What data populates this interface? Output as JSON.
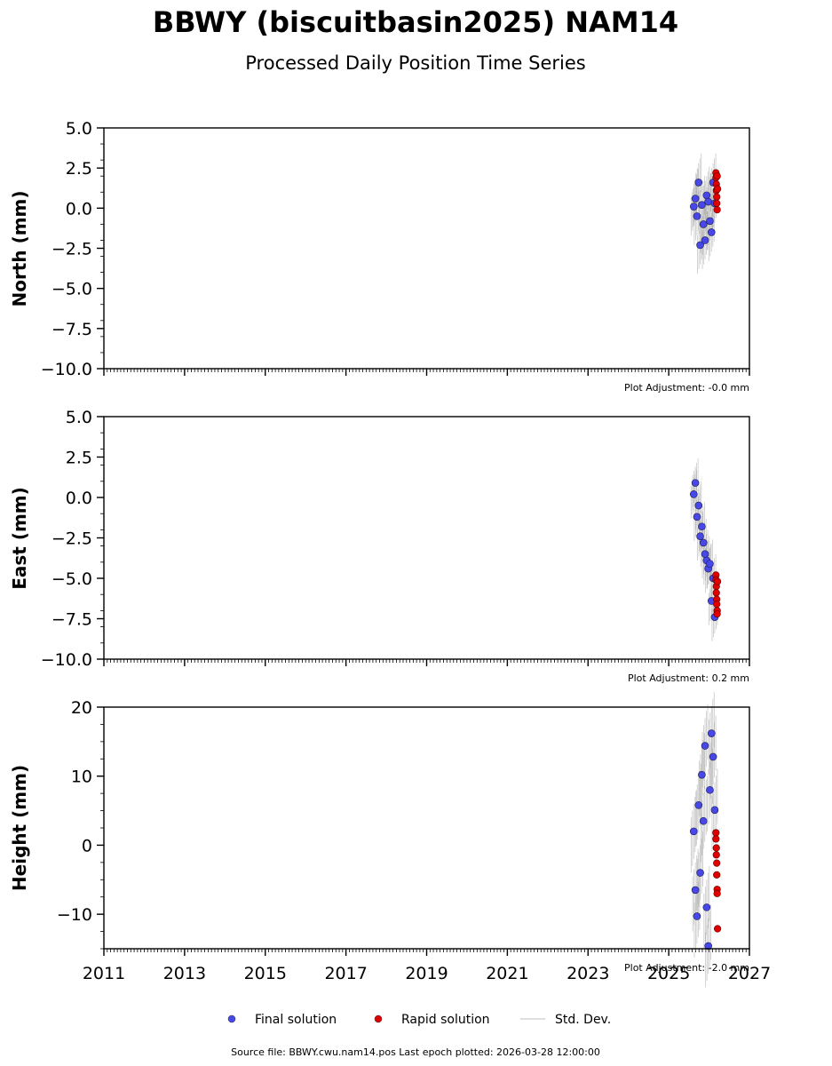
{
  "chart_data": {
    "type": "scatter",
    "title": "BBWY (biscuitbasin2025) NAM14",
    "subtitle": "Processed Daily Position Time Series",
    "footer": "Source file: BBWY.cwu.nam14.pos  Last epoch plotted: 2026-03-28 12:00:00",
    "x_ticks": [
      "2011",
      "2013",
      "2015",
      "2017",
      "2019",
      "2021",
      "2023",
      "2025",
      "2027"
    ],
    "xlim": [
      2011,
      2027
    ],
    "legend_position": "bottom-center",
    "legend": [
      {
        "label": "Final solution",
        "color": "#4848e8"
      },
      {
        "label": "Rapid solution",
        "color": "#e00000"
      },
      {
        "label": "Std. Dev.",
        "color": "#d4d4d4"
      }
    ],
    "panels": [
      {
        "ylabel": "North (mm)",
        "ylim": [
          -10,
          5
        ],
        "y_ticks": [
          "5.0",
          "2.5",
          "0.0",
          "−2.5",
          "−5.0",
          "−7.5",
          "−10.0"
        ],
        "adjustment": "Plot Adjustment: -0.0 mm",
        "final": {
          "x": [
            2025.62,
            2025.66,
            2025.7,
            2025.74,
            2025.78,
            2025.82,
            2025.86,
            2025.9,
            2025.94,
            2025.98,
            2026.02,
            2026.06,
            2026.1,
            2026.14
          ],
          "y": [
            0.1,
            0.6,
            -0.5,
            1.6,
            -2.3,
            0.2,
            -1.0,
            -2.0,
            0.8,
            0.4,
            -0.8,
            -1.5,
            1.6,
            0.3
          ],
          "sd": [
            1.2,
            1.2,
            1.2,
            1.2,
            1.2,
            1.2,
            1.2,
            1.2,
            1.2,
            1.2,
            1.2,
            1.2,
            1.2,
            1.2
          ]
        },
        "rapid": {
          "x": [
            2026.17,
            2026.17,
            2026.18,
            2026.18,
            2026.19,
            2026.19,
            2026.2,
            2026.2,
            2026.21
          ],
          "y": [
            2.2,
            1.9,
            1.5,
            1.1,
            0.7,
            0.3,
            -0.1,
            2.0,
            1.2
          ]
        }
      },
      {
        "ylabel": "East (mm)",
        "ylim": [
          -10,
          5
        ],
        "y_ticks": [
          "5.0",
          "2.5",
          "0.0",
          "−2.5",
          "−5.0",
          "−7.5",
          "−10.0"
        ],
        "adjustment": "Plot Adjustment: 0.2 mm",
        "final": {
          "x": [
            2025.62,
            2025.66,
            2025.7,
            2025.74,
            2025.78,
            2025.82,
            2025.86,
            2025.9,
            2025.94,
            2025.98,
            2026.02,
            2026.06,
            2026.1,
            2026.14
          ],
          "y": [
            0.2,
            0.9,
            -1.2,
            -0.5,
            -2.4,
            -1.8,
            -2.8,
            -3.5,
            -3.9,
            -4.4,
            -4.1,
            -6.4,
            -5.0,
            -7.4
          ],
          "sd": [
            1.0,
            1.0,
            1.0,
            1.0,
            1.0,
            1.0,
            1.0,
            1.0,
            1.0,
            1.0,
            1.0,
            1.0,
            1.0,
            1.0
          ]
        },
        "rapid": {
          "x": [
            2026.17,
            2026.17,
            2026.18,
            2026.18,
            2026.19,
            2026.19,
            2026.2,
            2026.2,
            2026.21
          ],
          "y": [
            -4.8,
            -5.1,
            -5.5,
            -5.9,
            -6.3,
            -6.6,
            -7.0,
            -7.2,
            -5.2
          ]
        }
      },
      {
        "ylabel": "Height (mm)",
        "ylim": [
          -15,
          20
        ],
        "y_ticks": [
          "20",
          "10",
          "0",
          "−10"
        ],
        "adjustment": "Plot Adjustment: -2.0 mm",
        "final": {
          "x": [
            2025.62,
            2025.66,
            2025.7,
            2025.74,
            2025.78,
            2025.82,
            2025.86,
            2025.9,
            2025.94,
            2025.98,
            2026.02,
            2026.06,
            2026.1,
            2026.14
          ],
          "y": [
            2.0,
            -6.5,
            -10.3,
            5.8,
            -4.0,
            10.2,
            3.5,
            14.4,
            -9.0,
            -14.6,
            8.0,
            16.2,
            12.8,
            5.1
          ],
          "sd": [
            4.0,
            4.0,
            4.0,
            4.0,
            4.0,
            4.0,
            4.0,
            4.0,
            4.0,
            4.0,
            4.0,
            4.0,
            4.0,
            4.0
          ]
        },
        "rapid": {
          "x": [
            2026.17,
            2026.17,
            2026.18,
            2026.18,
            2026.19,
            2026.19,
            2026.2,
            2026.2,
            2026.21
          ],
          "y": [
            1.8,
            0.9,
            -0.4,
            -1.4,
            -2.6,
            -4.3,
            -6.4,
            -7.0,
            -12.1
          ]
        }
      }
    ]
  }
}
